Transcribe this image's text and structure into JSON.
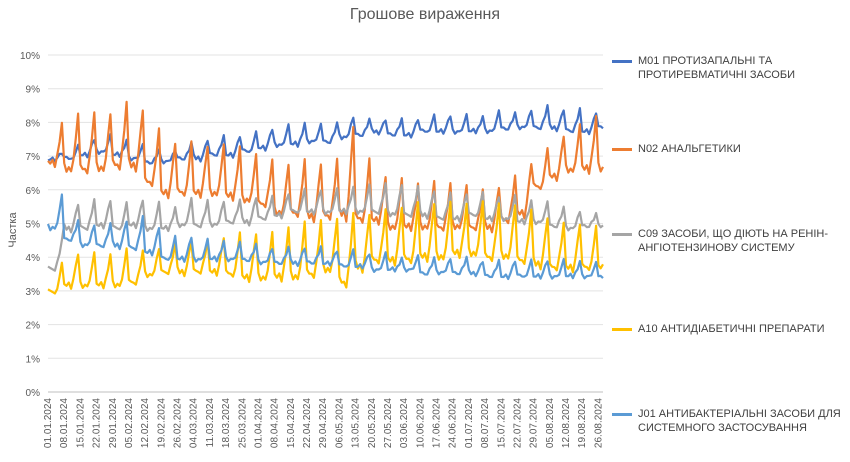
{
  "chart_data": {
    "type": "line",
    "title": "Грошове вираження",
    "ylabel": "Частка",
    "xlabel": "",
    "ylim": [
      0,
      10
    ],
    "y_ticks": [
      "0%",
      "1%",
      "2%",
      "3%",
      "4%",
      "5%",
      "6%",
      "7%",
      "8%",
      "9%",
      "10%"
    ],
    "x_labels": [
      "01.01.2024",
      "08.01.2024",
      "15.01.2024",
      "22.01.2024",
      "29.01.2024",
      "05.02.2024",
      "12.02.2024",
      "19.02.2024",
      "26.02.2024",
      "04.03.2024",
      "11.03.2024",
      "18.03.2024",
      "25.03.2024",
      "01.04.2024",
      "08.04.2024",
      "15.04.2024",
      "22.04.2024",
      "29.04.2024",
      "06.05.2024",
      "13.05.2024",
      "20.05.2024",
      "27.05.2024",
      "03.06.2024",
      "10.06.2024",
      "17.06.2024",
      "24.06.2024",
      "01.07.2024",
      "08.07.2024",
      "15.07.2024",
      "22.07.2024",
      "29.07.2024",
      "05.08.2024",
      "12.08.2024",
      "19.08.2024",
      "26.08.2024"
    ],
    "x_start": "01.01.2024",
    "x_end": "28.08.2024",
    "frequency": "daily",
    "legend_position": "right",
    "grid": "horizontal",
    "series": [
      {
        "name": "M01 ПРОТИЗАПАЛЬНІ ТА ПРОТИРЕВМАТИЧНІ ЗАСОБИ",
        "color": "#4472C4",
        "weekly_base": [
          6.9,
          6.9,
          7.0,
          7.1,
          7.0,
          6.9,
          6.8,
          6.8,
          6.9,
          6.9,
          7.0,
          7.0,
          7.1,
          7.2,
          7.3,
          7.3,
          7.4,
          7.4,
          7.5,
          7.6,
          7.7,
          7.6,
          7.6,
          7.7,
          7.7,
          7.7,
          7.7,
          7.7,
          7.8,
          7.8,
          7.8,
          7.8,
          7.7,
          7.7,
          7.8
        ],
        "weekly_peak": [
          7.1,
          7.3,
          7.5,
          7.6,
          7.5,
          7.3,
          7.2,
          7.2,
          7.4,
          7.5,
          7.6,
          7.6,
          7.7,
          7.8,
          7.9,
          8.0,
          7.9,
          8.0,
          8.2,
          8.1,
          8.1,
          8.1,
          8.1,
          8.2,
          8.2,
          8.2,
          8.2,
          8.3,
          8.3,
          8.4,
          8.5,
          8.4,
          8.4,
          8.3,
          8.3
        ]
      },
      {
        "name": "N02 АНАЛЬГЕТИКИ",
        "color": "#ED7D31",
        "weekly_base": [
          6.7,
          6.5,
          6.5,
          6.5,
          6.6,
          6.6,
          6.1,
          5.8,
          5.8,
          5.8,
          5.8,
          5.7,
          5.6,
          5.5,
          5.2,
          5.2,
          5.1,
          5.1,
          5.1,
          5.0,
          5.0,
          4.8,
          4.8,
          4.8,
          4.8,
          4.8,
          4.8,
          4.8,
          5.0,
          5.2,
          6.0,
          6.3,
          6.5,
          6.5,
          6.5
        ],
        "weekly_peak": [
          8.0,
          8.2,
          8.3,
          8.3,
          8.6,
          8.4,
          7.8,
          7.4,
          7.4,
          7.3,
          7.3,
          7.3,
          7.0,
          6.9,
          6.8,
          6.9,
          6.8,
          6.9,
          7.9,
          6.9,
          6.4,
          6.3,
          6.2,
          6.2,
          6.2,
          6.2,
          6.0,
          6.1,
          6.4,
          6.8,
          7.2,
          7.6,
          7.9,
          8.2,
          8.3
        ]
      },
      {
        "name": "C09 ЗАСОБИ, ЩО ДІЮТЬ НА РЕНІН-АНГІОТЕНЗИНОВУ СИСТЕМУ",
        "color": "#A5A5A5",
        "weekly_base": [
          3.6,
          4.8,
          4.8,
          4.9,
          4.8,
          4.9,
          4.8,
          4.8,
          4.9,
          4.9,
          4.9,
          5.0,
          5.0,
          5.1,
          5.2,
          5.3,
          5.3,
          5.3,
          5.3,
          5.3,
          5.3,
          5.2,
          5.2,
          5.2,
          5.1,
          5.1,
          5.2,
          5.1,
          5.1,
          5.0,
          5.0,
          4.9,
          4.8,
          4.9,
          4.9
        ],
        "weekly_peak": [
          4.5,
          5.6,
          5.7,
          5.7,
          5.6,
          5.7,
          5.6,
          5.5,
          5.7,
          5.7,
          5.7,
          5.7,
          5.8,
          5.8,
          5.9,
          6.0,
          6.0,
          6.0,
          6.1,
          6.1,
          6.2,
          6.2,
          6.1,
          6.0,
          5.9,
          5.9,
          5.9,
          5.8,
          5.8,
          5.7,
          5.6,
          5.5,
          5.4,
          5.3,
          5.1
        ]
      },
      {
        "name": "A10 АНТИДІАБЕТИЧНІ ПРЕПАРАТИ",
        "color": "#FFC000",
        "weekly_base": [
          2.9,
          3.1,
          3.1,
          3.1,
          3.1,
          3.2,
          3.4,
          3.5,
          3.5,
          3.5,
          3.5,
          3.4,
          3.3,
          3.3,
          3.3,
          3.3,
          3.4,
          3.5,
          3.1,
          3.6,
          3.8,
          3.8,
          3.8,
          3.9,
          3.9,
          4.0,
          4.0,
          3.9,
          3.9,
          3.8,
          3.7,
          3.6,
          3.6,
          3.6,
          3.6
        ],
        "weekly_peak": [
          3.8,
          4.1,
          4.1,
          4.1,
          4.2,
          4.2,
          4.3,
          4.4,
          4.5,
          4.5,
          4.6,
          4.7,
          4.7,
          4.7,
          4.9,
          5.0,
          5.1,
          5.2,
          5.3,
          5.3,
          5.4,
          5.5,
          5.6,
          5.6,
          5.6,
          5.6,
          5.6,
          5.6,
          5.6,
          5.4,
          5.2,
          5.0,
          5.0,
          4.9,
          5.0
        ]
      },
      {
        "name": "J01 АНТИБАКТЕРІАЛЬНІ ЗАСОБИ ДЛЯ СИСТЕМНОГО ЗАСТОСУВАННЯ",
        "color": "#5B9BD5",
        "weekly_base": [
          4.8,
          4.5,
          4.3,
          4.3,
          4.3,
          4.2,
          4.1,
          3.9,
          3.9,
          3.9,
          3.9,
          3.9,
          3.9,
          3.8,
          3.8,
          3.8,
          3.8,
          3.8,
          3.7,
          3.7,
          3.6,
          3.6,
          3.6,
          3.5,
          3.5,
          3.5,
          3.5,
          3.4,
          3.4,
          3.4,
          3.4,
          3.4,
          3.4,
          3.4,
          3.4
        ],
        "weekly_peak": [
          5.8,
          5.1,
          5.0,
          5.0,
          5.1,
          5.2,
          4.9,
          4.6,
          4.6,
          4.5,
          4.5,
          4.4,
          4.4,
          4.3,
          4.3,
          4.3,
          4.3,
          4.2,
          4.2,
          4.1,
          4.1,
          4.0,
          4.0,
          4.0,
          4.0,
          4.0,
          3.9,
          3.9,
          3.9,
          3.9,
          3.9,
          3.9,
          3.9,
          3.8,
          3.8
        ]
      }
    ]
  }
}
